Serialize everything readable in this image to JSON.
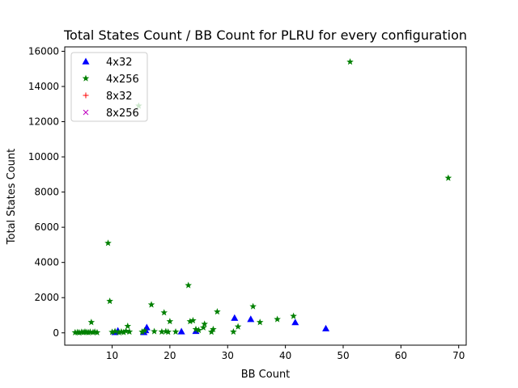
{
  "chart_data": {
    "type": "scatter",
    "title": "Total States Count / BB Count for PLRU for every configuration",
    "xlabel": "BB Count",
    "ylabel": "Total States Count",
    "xlim": [
      1.8,
      71.3
    ],
    "ylim": [
      -700,
      16250
    ],
    "xticks": [
      10,
      20,
      30,
      40,
      50,
      60,
      70
    ],
    "yticks": [
      0,
      2000,
      4000,
      6000,
      8000,
      10000,
      12000,
      14000,
      16000
    ],
    "grid": false,
    "legend_position": "top-left",
    "series": [
      {
        "name": "4x32",
        "marker": "triangle",
        "color": "#0000ff",
        "points": [
          [
            10.5,
            40
          ],
          [
            11.0,
            120
          ],
          [
            15.5,
            40
          ],
          [
            15.8,
            150
          ],
          [
            16.0,
            310
          ],
          [
            22.0,
            80
          ],
          [
            24.5,
            100
          ],
          [
            31.2,
            850
          ],
          [
            34.0,
            780
          ],
          [
            41.7,
            600
          ],
          [
            47.0,
            250
          ]
        ]
      },
      {
        "name": "4x256",
        "marker": "star",
        "color": "#008000",
        "points": [
          [
            3.6,
            20
          ],
          [
            4.0,
            30
          ],
          [
            4.3,
            15
          ],
          [
            4.7,
            40
          ],
          [
            5.0,
            25
          ],
          [
            5.3,
            60
          ],
          [
            5.6,
            35
          ],
          [
            5.9,
            20
          ],
          [
            6.2,
            45
          ],
          [
            6.4,
            600
          ],
          [
            6.7,
            30
          ],
          [
            7.0,
            50
          ],
          [
            7.4,
            20
          ],
          [
            9.3,
            5100
          ],
          [
            9.6,
            1800
          ],
          [
            10.0,
            40
          ],
          [
            10.5,
            80
          ],
          [
            11.2,
            20
          ],
          [
            11.6,
            60
          ],
          [
            12.0,
            30
          ],
          [
            12.4,
            100
          ],
          [
            12.7,
            380
          ],
          [
            13.0,
            60
          ],
          [
            14.6,
            12900
          ],
          [
            15.2,
            50
          ],
          [
            15.6,
            120
          ],
          [
            16.8,
            1600
          ],
          [
            17.3,
            80
          ],
          [
            18.6,
            60
          ],
          [
            19.0,
            1150
          ],
          [
            19.3,
            80
          ],
          [
            19.7,
            50
          ],
          [
            20.0,
            650
          ],
          [
            21.0,
            60
          ],
          [
            23.2,
            2700
          ],
          [
            23.5,
            650
          ],
          [
            24.0,
            700
          ],
          [
            24.5,
            200
          ],
          [
            25.0,
            150
          ],
          [
            25.8,
            300
          ],
          [
            26.0,
            500
          ],
          [
            27.2,
            50
          ],
          [
            27.5,
            200
          ],
          [
            28.2,
            1200
          ],
          [
            31.0,
            60
          ],
          [
            31.8,
            350
          ],
          [
            34.4,
            1500
          ],
          [
            35.6,
            600
          ],
          [
            38.6,
            770
          ],
          [
            41.4,
            950
          ],
          [
            51.2,
            15400
          ],
          [
            68.2,
            8800
          ]
        ]
      },
      {
        "name": "8x32",
        "marker": "plus",
        "color": "#ff0000",
        "points": []
      },
      {
        "name": "8x256",
        "marker": "x",
        "color": "#bf00bf",
        "points": []
      }
    ]
  }
}
